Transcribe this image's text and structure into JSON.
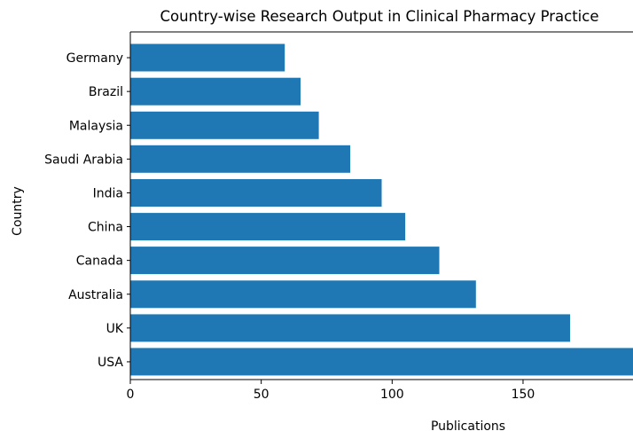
{
  "chart_data": {
    "type": "bar",
    "orientation": "horizontal",
    "title": "Country-wise Research Output in Clinical Pharmacy Practice",
    "xlabel": "Publications",
    "ylabel": "Country",
    "categories": [
      "USA",
      "UK",
      "Australia",
      "Canada",
      "China",
      "India",
      "Saudi Arabia",
      "Malaysia",
      "Brazil",
      "Germany"
    ],
    "values": [
      195,
      168,
      132,
      118,
      105,
      96,
      84,
      72,
      65,
      59
    ],
    "xlim": [
      0,
      192
    ],
    "xticks": [
      0,
      50,
      100,
      150
    ],
    "grid": false,
    "bar_color": "#1f77b4"
  }
}
